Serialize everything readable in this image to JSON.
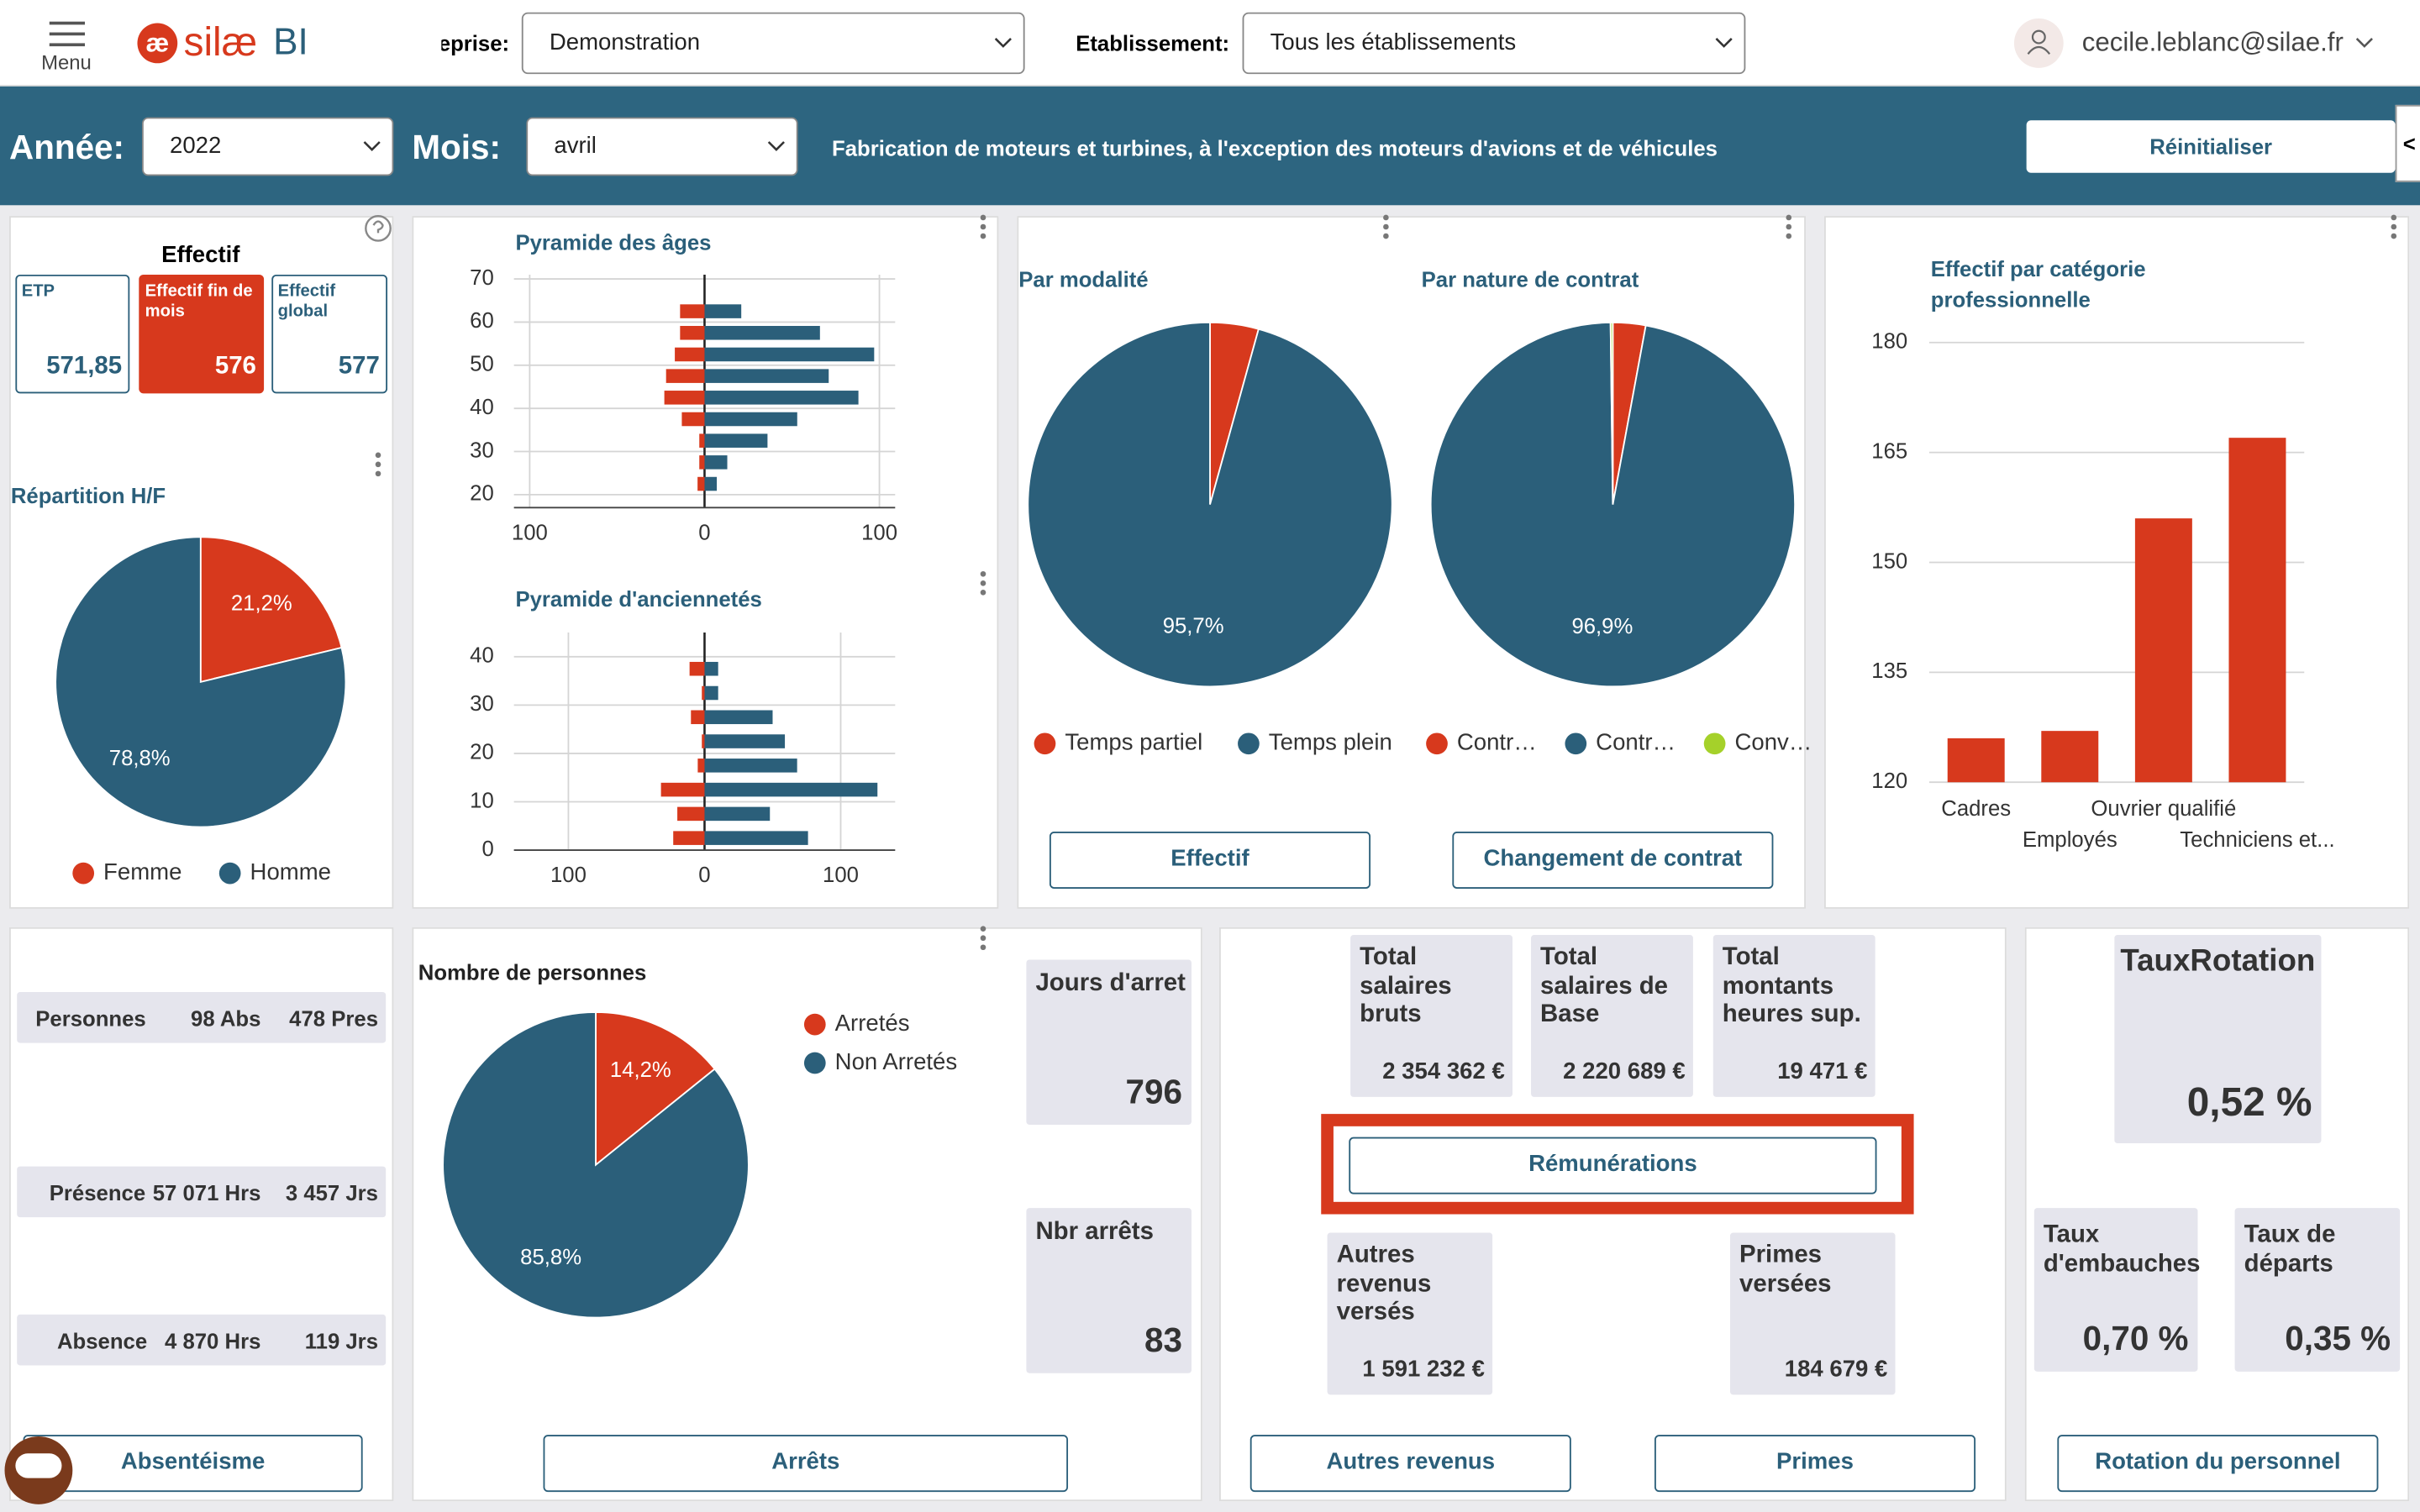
{
  "header": {
    "menu": "Menu",
    "logo_mark": "æ",
    "logo": "silæ",
    "logo_bi": "BI",
    "enterprise_label": "Entreprise:",
    "enterprise_value": "Demonstration",
    "establishment_label": "Etablissement:",
    "establishment_value": "Tous les établissements",
    "user": "cecile.leblanc@silae.fr"
  },
  "filters": {
    "year_label": "Année:",
    "year": "2022",
    "month_label": "Mois:",
    "month": "avril",
    "activity": "Fabrication de moteurs et turbines, à l'exception des moteurs d'avions et de véhicules",
    "reset": "Réinitialiser",
    "collapse": "<"
  },
  "effectif": {
    "title": "Effectif",
    "cards": [
      {
        "label": "ETP",
        "value": "571,85"
      },
      {
        "label": "Effectif fin de mois",
        "value": "576"
      },
      {
        "label": "Effectif global",
        "value": "577"
      }
    ]
  },
  "gender": {
    "type": "pie",
    "title": "Répartition H/F",
    "categories": [
      "Femme",
      "Homme"
    ],
    "values": [
      21.2,
      78.8
    ],
    "value_labels": [
      "21,2%",
      "78,8%"
    ],
    "colors": [
      "#d7391d",
      "#2b5f7a"
    ]
  },
  "age_pyramid": {
    "type": "bar",
    "orientation": "horizontal",
    "title": "Pyramide des âges",
    "y": [
      22.5,
      27.5,
      32.5,
      37.5,
      42.5,
      47.5,
      52.5,
      57.5,
      62.5
    ],
    "series": [
      {
        "color": "#2b5f7a",
        "values": [
          7,
          13,
          36,
          53,
          88,
          71,
          97,
          66,
          21
        ]
      },
      {
        "color": "#d7391d",
        "values": [
          -4,
          -3,
          -3,
          -13,
          -23,
          -22,
          -17,
          -14,
          -14
        ]
      }
    ],
    "xlim": [
      -109,
      109
    ],
    "xticks": [
      {
        "value": -100,
        "label": "100"
      },
      0,
      100
    ],
    "ylim": [
      17,
      71
    ],
    "yticks": [
      20,
      30,
      40,
      50,
      60,
      70
    ]
  },
  "seniority_pyramid": {
    "type": "bar",
    "orientation": "horizontal",
    "title": "Pyramide d'anciennetés",
    "y": [
      2.5,
      7.5,
      12.5,
      17.5,
      22.5,
      27.5,
      32.5,
      37.5
    ],
    "series": [
      {
        "color": "#2b5f7a",
        "values": [
          76,
          48,
          127,
          68,
          59,
          50,
          10,
          10
        ]
      },
      {
        "color": "#d7391d",
        "values": [
          -23,
          -20,
          -32,
          -5,
          -2,
          -10,
          -2,
          -11
        ]
      }
    ],
    "xlim": [
      -140,
      140
    ],
    "xticks": [
      {
        "value": -100,
        "label": "100"
      },
      0,
      100
    ],
    "ylim": [
      0,
      45
    ],
    "yticks": [
      0,
      10,
      20,
      30,
      40
    ]
  },
  "modality": {
    "type": "pie",
    "title": "Par modalité",
    "categories": [
      "Temps partiel",
      "Temps plein"
    ],
    "values": [
      4.3,
      95.7
    ],
    "value_labels": [
      null,
      "95,7%"
    ],
    "colors": [
      "#d7391d",
      "#2b5f7a"
    ],
    "button": "Effectif"
  },
  "contract": {
    "type": "pie",
    "title": "Par nature de contrat",
    "categories": [
      "Contr…",
      "Contr…",
      "Conv…"
    ],
    "values": [
      2.9,
      96.9,
      0.2
    ],
    "value_labels": [
      null,
      "96,9%",
      null
    ],
    "colors": [
      "#d7391d",
      "#2b5f7a",
      "#a5d12a"
    ],
    "button": "Changement de contrat"
  },
  "category": {
    "type": "bar",
    "title": "Effectif par catégorie professionnelle",
    "categories": [
      "Cadres",
      "Employés",
      "Ouvrier qualifié",
      "Techniciens et..."
    ],
    "values": [
      126,
      127,
      156,
      167
    ],
    "color": "#d7391d",
    "ylim": [
      120,
      180
    ],
    "yticks": [
      120,
      135,
      150,
      165,
      180
    ],
    "grid": true
  },
  "absence": {
    "rows": [
      [
        "Personnes",
        "98 Abs",
        "478 Pres"
      ],
      [
        "Présence",
        "57 071 Hrs",
        "3 457 Jrs"
      ],
      [
        "Absence",
        "4 870 Hrs",
        "119 Jrs"
      ]
    ],
    "button": "Absentéisme"
  },
  "stops": {
    "type": "pie",
    "title": "Nombre de personnes",
    "categories": [
      "Arretés",
      "Non Arretés"
    ],
    "values": [
      14.2,
      85.8
    ],
    "value_labels": [
      "14,2%",
      "85,8%"
    ],
    "colors": [
      "#d7391d",
      "#2b5f7a"
    ],
    "cards": [
      {
        "label": "Jours d'arret",
        "value": "796"
      },
      {
        "label": "Nbr arrêts",
        "value": "83"
      }
    ],
    "button": "Arrêts"
  },
  "pay": {
    "cards": [
      {
        "label": "Total salaires bruts",
        "value": "2 354 362 €"
      },
      {
        "label": "Total salaires de Base",
        "value": "2 220 689 €"
      },
      {
        "label": "Total montants heures sup.",
        "value": "19 471 €"
      },
      {
        "label": "Autres revenus versés",
        "value": "1 591 232 €"
      },
      {
        "label": "Primes versées",
        "value": "184 679 €"
      }
    ],
    "buttons": [
      "Rémunérations",
      "Autres revenus",
      "Primes"
    ]
  },
  "rotation": {
    "cards": [
      {
        "label": "TauxRotation",
        "value": "0,52 %"
      },
      {
        "label": "Taux d'embauches",
        "value": "0,70 %"
      },
      {
        "label": "Taux de départs",
        "value": "0,35 %"
      }
    ],
    "button": "Rotation du personnel"
  }
}
